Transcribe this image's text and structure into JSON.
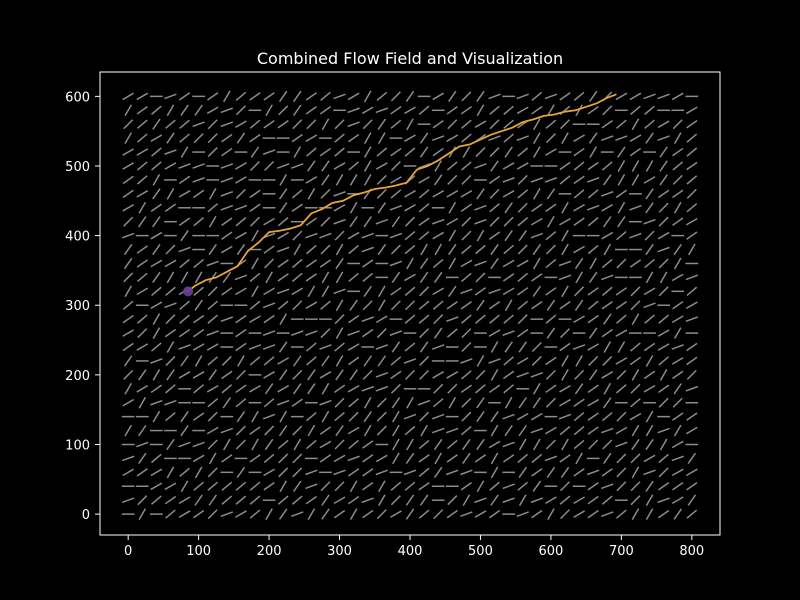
{
  "chart_data": {
    "type": "line",
    "title": "Combined Flow Field and Visualization",
    "xlabel": "",
    "ylabel": "",
    "xlim": [
      -40,
      840
    ],
    "ylim": [
      -30,
      635
    ],
    "xticks": [
      0,
      100,
      200,
      300,
      400,
      500,
      600,
      700,
      800
    ],
    "yticks": [
      0,
      100,
      200,
      300,
      400,
      500,
      600
    ],
    "grid": false,
    "colors": {
      "background": "#000000",
      "axes": "#ffffff",
      "field": "#8c8c8c",
      "path": "#e8a33a",
      "start_marker": "#6a3d9a"
    },
    "flow_field": {
      "x_range": [
        0,
        800
      ],
      "y_range": [
        0,
        600
      ],
      "step": 20,
      "segment_length": 18,
      "predominant_angle_deg": 35
    },
    "series": [
      {
        "x": [
          85,
          95,
          110,
          125,
          140,
          155,
          170,
          185,
          200,
          215,
          230,
          245,
          260,
          275,
          290,
          305,
          320,
          335,
          350,
          365,
          380,
          395,
          410,
          425,
          440,
          455,
          470,
          485,
          500,
          515,
          530,
          545,
          560,
          575,
          590,
          605,
          620,
          635,
          650,
          665,
          680,
          693
        ],
        "y": [
          320,
          328,
          336,
          340,
          348,
          356,
          378,
          390,
          405,
          407,
          410,
          415,
          432,
          438,
          447,
          450,
          458,
          462,
          467,
          469,
          472,
          476,
          495,
          500,
          508,
          518,
          528,
          531,
          538,
          545,
          550,
          555,
          563,
          567,
          572,
          574,
          578,
          580,
          585,
          590,
          598,
          603
        ]
      }
    ],
    "start_point": {
      "x": 85,
      "y": 320
    }
  }
}
